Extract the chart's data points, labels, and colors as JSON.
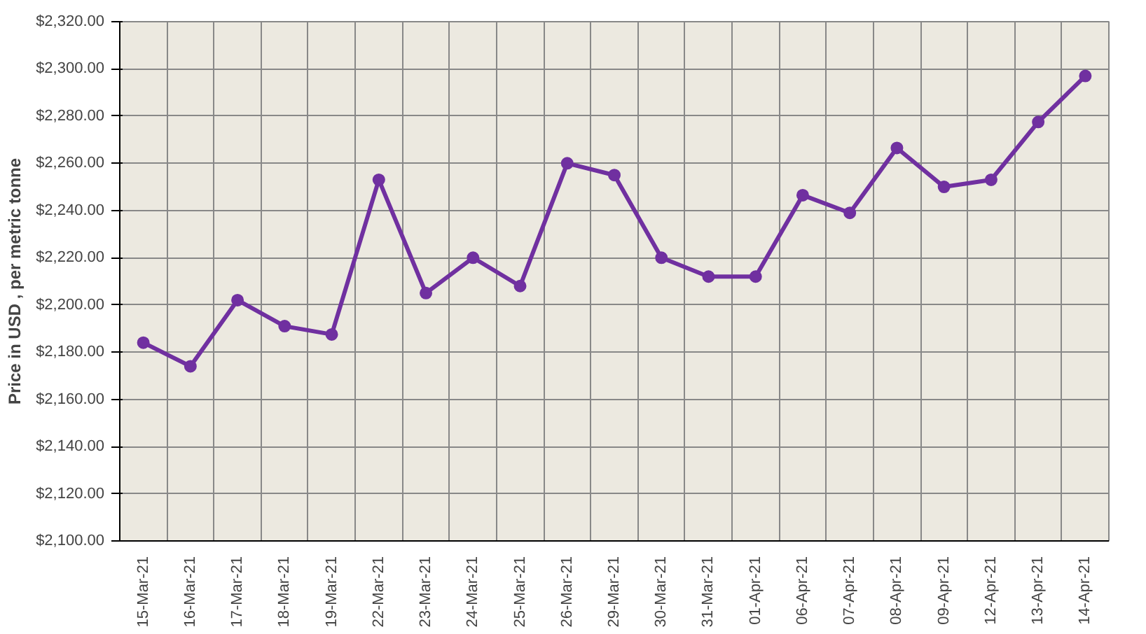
{
  "chart_data": {
    "type": "line",
    "ylabel": "Price in USD , per metric tonne",
    "categories": [
      "15-Mar-21",
      "16-Mar-21",
      "17-Mar-21",
      "18-Mar-21",
      "19-Mar-21",
      "22-Mar-21",
      "23-Mar-21",
      "24-Mar-21",
      "25-Mar-21",
      "26-Mar-21",
      "29-Mar-21",
      "30-Mar-21",
      "31-Mar-21",
      "01-Apr-21",
      "06-Apr-21",
      "07-Apr-21",
      "08-Apr-21",
      "09-Apr-21",
      "12-Apr-21",
      "13-Apr-21",
      "14-Apr-21"
    ],
    "series": [
      {
        "color": "#7030a0",
        "values": [
          2184,
          2174,
          2202,
          2191,
          2187.5,
          2253,
          2205,
          2220,
          2208,
          2260,
          2255,
          2220,
          2212,
          2212,
          2246.5,
          2239,
          2266.5,
          2250,
          2253,
          2277.5,
          2297
        ]
      }
    ],
    "ylim": [
      2100,
      2320
    ],
    "yticks": [
      {
        "value": 2100,
        "label": "$2,100.00"
      },
      {
        "value": 2120,
        "label": "$2,120.00"
      },
      {
        "value": 2140,
        "label": "$2,140.00"
      },
      {
        "value": 2160,
        "label": "$2,160.00"
      },
      {
        "value": 2180,
        "label": "$2,180.00"
      },
      {
        "value": 2200,
        "label": "$2,200.00"
      },
      {
        "value": 2220,
        "label": "$2,220.00"
      },
      {
        "value": 2240,
        "label": "$2,240.00"
      },
      {
        "value": 2260,
        "label": "$2,260.00"
      },
      {
        "value": 2280,
        "label": "$2,280.00"
      },
      {
        "value": 2300,
        "label": "$2,300.00"
      },
      {
        "value": 2320,
        "label": "$2,320.00"
      }
    ],
    "grid": true,
    "marker": "circle",
    "line_style": "solid"
  }
}
